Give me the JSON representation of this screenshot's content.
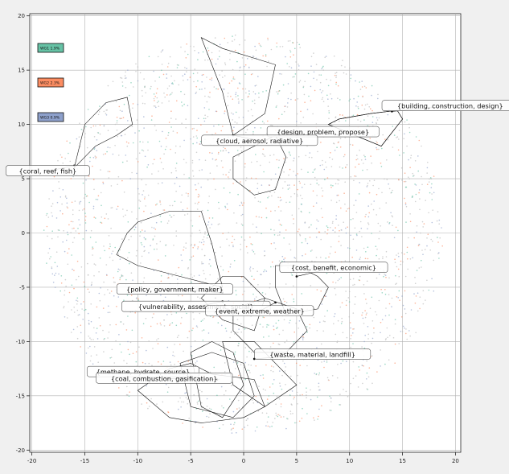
{
  "chart_data": {
    "type": "scatter",
    "title": "",
    "xlabel": "",
    "ylabel": "",
    "xlim": [
      -20.2,
      20.5
    ],
    "ylim": [
      -20.2,
      20.2
    ],
    "xticks": [
      -20,
      -15,
      -10,
      -5,
      0,
      5,
      10,
      15,
      20
    ],
    "yticks": [
      -20,
      -15,
      -10,
      -5,
      0,
      5,
      10,
      15,
      20
    ],
    "grid": true,
    "legend_placement": "top-left",
    "legend": [
      {
        "label": "WG1 1.9%",
        "color": "#66c2a5"
      },
      {
        "label": "WG2 2.3%",
        "color": "#fc8d62"
      },
      {
        "label": "WG3 0.9%",
        "color": "#8da0cb"
      }
    ],
    "background_points_color": "#bdbdbd",
    "clusters": [
      {
        "label": "{building, construction, design}",
        "anchor": [
          14,
          11.2
        ],
        "text_at": [
          19.5,
          11.7
        ],
        "hull": [
          [
            8,
            10
          ],
          [
            13,
            8
          ],
          [
            15,
            10.5
          ],
          [
            14.5,
            11.3
          ],
          [
            12,
            11
          ],
          [
            9,
            10.5
          ]
        ]
      },
      {
        "label": "{design, problem, propose}",
        "anchor": [
          9,
          9
        ],
        "text_at": [
          7.5,
          9.3
        ],
        "hull": [
          [
            9,
            10.5
          ],
          [
            12,
            11
          ],
          [
            14.5,
            11.3
          ],
          [
            15,
            10.5
          ],
          [
            13,
            8
          ],
          [
            8,
            10
          ]
        ]
      },
      {
        "label": "{cloud, aerosol, radiative}",
        "anchor": [
          -1,
          9
        ],
        "text_at": [
          1.5,
          8.5
        ],
        "hull": [
          [
            -4,
            18
          ],
          [
            -2,
            17
          ],
          [
            3,
            15.5
          ],
          [
            2,
            11
          ],
          [
            -1,
            9
          ],
          [
            -2,
            13
          ]
        ]
      },
      {
        "label": "{coral, reef, fish}",
        "anchor": [
          -16,
          6.2
        ],
        "text_at": [
          -18.5,
          5.7
        ],
        "hull": [
          [
            -16,
            6
          ],
          [
            -14,
            8
          ],
          [
            -12,
            9
          ],
          [
            -10.5,
            10
          ],
          [
            -11,
            12.5
          ],
          [
            -13,
            12
          ],
          [
            -15,
            10
          ]
        ]
      },
      {
        "label": "{cost, benefit, economic}",
        "anchor": [
          5,
          -4
        ],
        "text_at": [
          8.5,
          -3.2
        ],
        "hull": [
          [
            3,
            -3
          ],
          [
            5,
            -3
          ],
          [
            7,
            -4
          ],
          [
            8,
            -5
          ],
          [
            7,
            -7
          ],
          [
            4,
            -7.5
          ],
          [
            3,
            -5
          ]
        ]
      },
      {
        "label": "{policy, government, maker}",
        "anchor": [
          -2,
          -5.5
        ],
        "text_at": [
          -6.5,
          -5.2
        ],
        "hull": [
          [
            -12,
            -2
          ],
          [
            -11,
            0
          ],
          [
            -10,
            1
          ],
          [
            -7,
            2
          ],
          [
            -4,
            2
          ],
          [
            -3,
            -1
          ],
          [
            -2,
            -5
          ],
          [
            -6,
            -4
          ],
          [
            -10,
            -3
          ]
        ]
      },
      {
        "label": "{vulnerability, assessment, social}",
        "anchor": [
          -2,
          -6.3
        ],
        "text_at": [
          -4.5,
          -6.8
        ],
        "hull": [
          [
            -4,
            -6
          ],
          [
            -2,
            -4
          ],
          [
            0,
            -4
          ],
          [
            2,
            -6
          ],
          [
            1,
            -9
          ],
          [
            -2,
            -8
          ]
        ]
      },
      {
        "label": "{event, extreme, weather}",
        "anchor": [
          3,
          -6.4
        ],
        "text_at": [
          1.5,
          -7.2
        ],
        "hull": [
          [
            -1,
            -7
          ],
          [
            2,
            -6
          ],
          [
            5,
            -7
          ],
          [
            6,
            -9
          ],
          [
            4,
            -11
          ],
          [
            1,
            -11
          ],
          [
            -1,
            -9
          ]
        ]
      },
      {
        "label": "{waste, material, landfill}",
        "anchor": [
          1,
          -11.6
        ],
        "text_at": [
          6.5,
          -11.2
        ],
        "hull": [
          [
            -2,
            -10
          ],
          [
            1,
            -10
          ],
          [
            3,
            -12
          ],
          [
            5,
            -14
          ],
          [
            2,
            -16
          ],
          [
            -1,
            -14
          ]
        ]
      },
      {
        "label": "{methane, hydrate, source}",
        "anchor": [
          -5,
          -13
        ],
        "text_at": [
          -9.5,
          -12.8
        ],
        "hull": [
          [
            -5,
            -11
          ],
          [
            -3,
            -10
          ],
          [
            -1,
            -11
          ],
          [
            0,
            -14
          ],
          [
            -2,
            -17
          ],
          [
            -4,
            -16
          ]
        ]
      },
      {
        "label": "{coal, combustion, gasification}",
        "anchor": [
          -2.5,
          -13.5
        ],
        "text_at": [
          -7.5,
          -13.4
        ],
        "hull": [
          [
            -6,
            -12
          ],
          [
            -3,
            -11
          ],
          [
            0,
            -12
          ],
          [
            1,
            -15
          ],
          [
            -1,
            -17
          ],
          [
            -5,
            -16
          ]
        ]
      },
      {
        "label": "",
        "anchor": [
          4,
          7
        ],
        "text_at": [
          4,
          7
        ],
        "hull": [
          [
            -1,
            7
          ],
          [
            1,
            8
          ],
          [
            3,
            9
          ],
          [
            4,
            7
          ],
          [
            3,
            4
          ],
          [
            1,
            3.5
          ],
          [
            -1,
            5
          ]
        ]
      },
      {
        "label": "",
        "anchor": [
          -4,
          -15
        ],
        "text_at": [
          -4,
          -15
        ],
        "hull": [
          [
            -10,
            -14.5
          ],
          [
            -7,
            -12.5
          ],
          [
            -5,
            -12
          ],
          [
            -3,
            -13
          ],
          [
            1,
            -13.5
          ],
          [
            2,
            -16
          ],
          [
            0,
            -17
          ],
          [
            -4,
            -17.5
          ],
          [
            -7,
            -17
          ]
        ]
      }
    ]
  }
}
